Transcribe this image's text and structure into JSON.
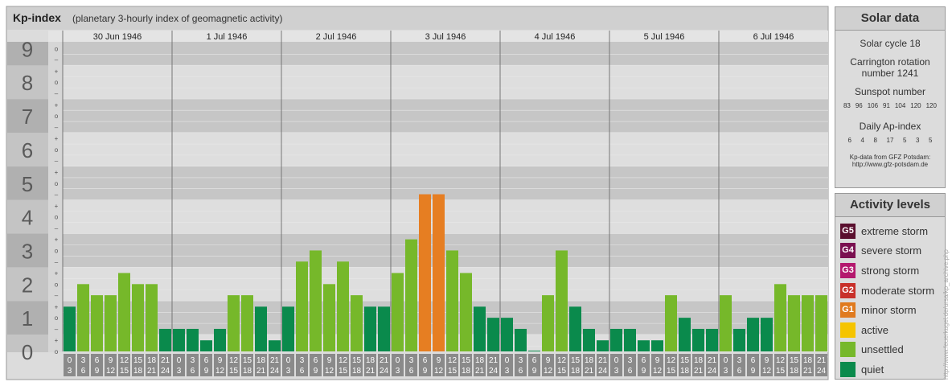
{
  "title": "Kp-index",
  "subtitle": "(planetary 3-hourly index of geomagnetic activity)",
  "chart_data": {
    "type": "bar",
    "ylim": [
      0,
      9.2
    ],
    "yticks": [
      0,
      1,
      2,
      3,
      4,
      5,
      6,
      7,
      8,
      9
    ],
    "grid": true,
    "minor_ticks": [
      {
        "value": 0,
        "label": "o"
      },
      {
        "value": 0.33,
        "label": "+"
      },
      {
        "value": 0.67,
        "label": "–"
      },
      {
        "value": 1,
        "label": "o"
      },
      {
        "value": 1.33,
        "label": "+"
      },
      {
        "value": 1.67,
        "label": "–"
      },
      {
        "value": 2,
        "label": "o"
      },
      {
        "value": 2.33,
        "label": "+"
      },
      {
        "value": 2.67,
        "label": "–"
      },
      {
        "value": 3,
        "label": "o"
      },
      {
        "value": 3.33,
        "label": "+"
      },
      {
        "value": 3.67,
        "label": "–"
      },
      {
        "value": 4,
        "label": "o"
      },
      {
        "value": 4.33,
        "label": "+"
      },
      {
        "value": 4.67,
        "label": "–"
      },
      {
        "value": 5,
        "label": "o"
      },
      {
        "value": 5.33,
        "label": "+"
      },
      {
        "value": 5.67,
        "label": "–"
      },
      {
        "value": 6,
        "label": "o"
      },
      {
        "value": 6.33,
        "label": "+"
      },
      {
        "value": 6.67,
        "label": "–"
      },
      {
        "value": 7,
        "label": "o"
      },
      {
        "value": 7.33,
        "label": "+"
      },
      {
        "value": 7.67,
        "label": "–"
      },
      {
        "value": 8,
        "label": "o"
      },
      {
        "value": 8.33,
        "label": "+"
      },
      {
        "value": 8.67,
        "label": "–"
      },
      {
        "value": 9,
        "label": "o"
      }
    ],
    "slots": [
      [
        "0",
        "3"
      ],
      [
        "3",
        "6"
      ],
      [
        "6",
        "9"
      ],
      [
        "9",
        "12"
      ],
      [
        "12",
        "15"
      ],
      [
        "15",
        "18"
      ],
      [
        "18",
        "21"
      ],
      [
        "21",
        "24"
      ]
    ],
    "days": [
      {
        "label": "30 Jun 1946",
        "values": [
          1.33,
          2,
          1.67,
          1.67,
          2.33,
          2,
          2,
          0.67
        ],
        "colors": [
          "#0a8a4c",
          "#76b82a",
          "#76b82a",
          "#76b82a",
          "#76b82a",
          "#76b82a",
          "#76b82a",
          "#0a8a4c"
        ]
      },
      {
        "label": "1 Jul 1946",
        "values": [
          0.67,
          0.67,
          0.33,
          0.67,
          1.67,
          1.67,
          1.33,
          0.33
        ],
        "colors": [
          "#0a8a4c",
          "#0a8a4c",
          "#0a8a4c",
          "#0a8a4c",
          "#76b82a",
          "#76b82a",
          "#0a8a4c",
          "#0a8a4c"
        ]
      },
      {
        "label": "2 Jul 1946",
        "values": [
          1.33,
          2.67,
          3,
          2,
          2.67,
          1.67,
          1.33,
          1.33
        ],
        "colors": [
          "#0a8a4c",
          "#76b82a",
          "#76b82a",
          "#76b82a",
          "#76b82a",
          "#76b82a",
          "#0a8a4c",
          "#0a8a4c"
        ]
      },
      {
        "label": "3 Jul 1946",
        "values": [
          2.33,
          3.33,
          4.67,
          4.67,
          3,
          2.33,
          1.33,
          1
        ],
        "colors": [
          "#76b82a",
          "#76b82a",
          "#e67e22",
          "#e67e22",
          "#76b82a",
          "#76b82a",
          "#0a8a4c",
          "#0a8a4c"
        ]
      },
      {
        "label": "4 Jul 1946",
        "values": [
          1,
          0.67,
          0,
          1.67,
          3,
          1.33,
          0.67,
          0.33
        ],
        "colors": [
          "#0a8a4c",
          "#0a8a4c",
          "#0a8a4c",
          "#76b82a",
          "#76b82a",
          "#0a8a4c",
          "#0a8a4c",
          "#0a8a4c"
        ]
      },
      {
        "label": "5 Jul 1946",
        "values": [
          0.67,
          0.67,
          0.33,
          0.33,
          1.67,
          1,
          0.67,
          0.67
        ],
        "colors": [
          "#0a8a4c",
          "#0a8a4c",
          "#0a8a4c",
          "#0a8a4c",
          "#76b82a",
          "#0a8a4c",
          "#0a8a4c",
          "#0a8a4c"
        ]
      },
      {
        "label": "6 Jul 1946",
        "values": [
          1.67,
          0.67,
          1,
          1,
          2,
          1.67,
          1.67,
          1.67
        ],
        "colors": [
          "#76b82a",
          "#0a8a4c",
          "#0a8a4c",
          "#0a8a4c",
          "#76b82a",
          "#76b82a",
          "#76b82a",
          "#76b82a"
        ]
      }
    ]
  },
  "solar_data": {
    "title": "Solar data",
    "cycle": "Solar cycle 18",
    "carrington": "Carrington rotation number 1241",
    "sunspot_title": "Sunspot number",
    "sunspots": [
      "83",
      "96",
      "106",
      "91",
      "104",
      "120",
      "120"
    ],
    "ap_title": "Daily Ap-index",
    "ap": [
      "6",
      "4",
      "8",
      "17",
      "5",
      "3",
      "5"
    ],
    "source": "Kp-data from GFZ Potsdam:",
    "source_url": "http://www.gfz-potsdam.de"
  },
  "activity_levels": {
    "title": "Activity levels",
    "items": [
      {
        "badge": "G5",
        "label": "extreme storm",
        "color": "#5a0f2e"
      },
      {
        "badge": "G4",
        "label": "severe storm",
        "color": "#7a1050"
      },
      {
        "badge": "G3",
        "label": "strong storm",
        "color": "#b4186e"
      },
      {
        "badge": "G2",
        "label": "moderate storm",
        "color": "#c8302a"
      },
      {
        "badge": "G1",
        "label": "minor storm",
        "color": "#e07a1e"
      },
      {
        "label": "active",
        "color": "#f5c400"
      },
      {
        "label": "unsettled",
        "color": "#76b82a"
      },
      {
        "label": "quiet",
        "color": "#0a8a4c"
      }
    ]
  },
  "watermark": "http://www.feuerkugel.de/ursa/kp_archive.php"
}
